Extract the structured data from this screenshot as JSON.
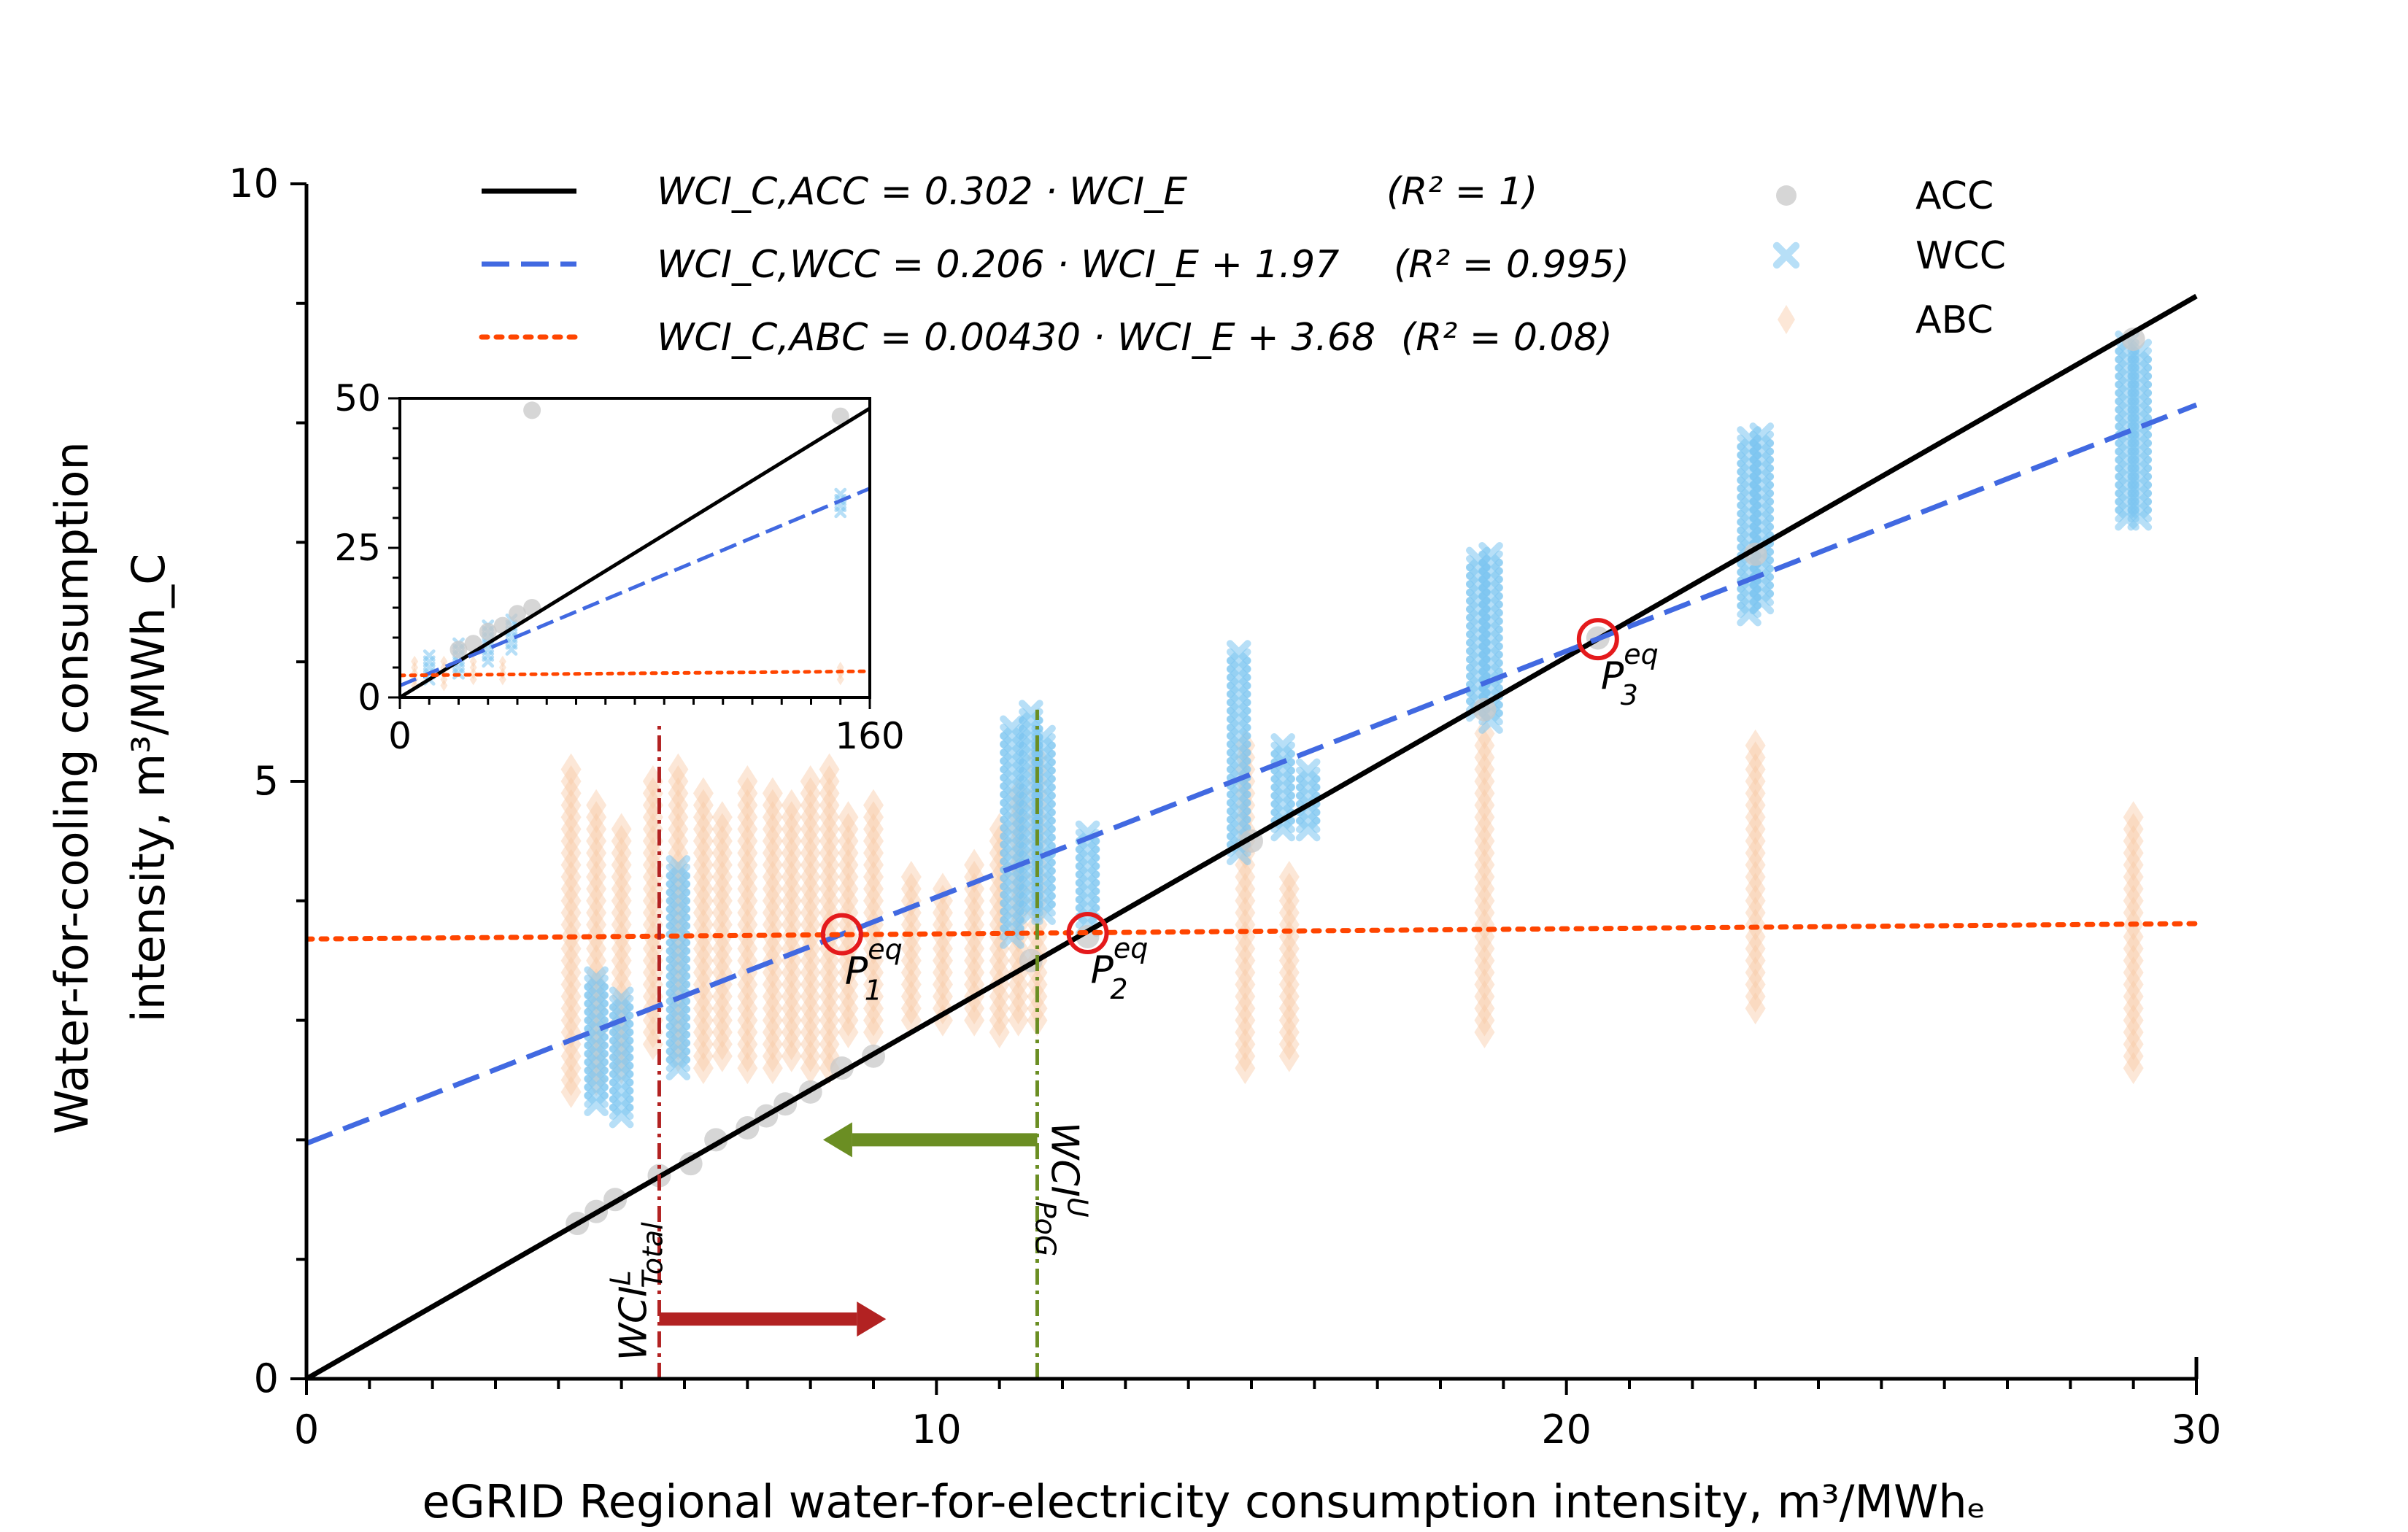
{
  "chart_data": {
    "type": "scatter",
    "xlabel": "eGRID Regional water-for-electricity consumption intensity, m³/MWhₑ",
    "ylabel_line1": "Water-for-cooling consumption",
    "ylabel_line2": "intensity, m³/MWh_C",
    "xlim": [
      0,
      30
    ],
    "ylim": [
      0,
      10
    ],
    "x_ticks": [
      0,
      10,
      20,
      30
    ],
    "y_ticks": [
      0,
      5,
      10
    ],
    "x_minor_step": 1,
    "series": [
      {
        "name": "ACC",
        "color": "#c8c8c8",
        "marker": "circle",
        "points": [
          [
            4.3,
            1.3
          ],
          [
            4.6,
            1.4
          ],
          [
            4.9,
            1.5
          ],
          [
            5.6,
            1.7
          ],
          [
            6.1,
            1.8
          ],
          [
            6.5,
            2.0
          ],
          [
            7.0,
            2.1
          ],
          [
            7.3,
            2.2
          ],
          [
            7.6,
            2.3
          ],
          [
            8.0,
            2.4
          ],
          [
            8.5,
            2.6
          ],
          [
            9.0,
            2.7
          ],
          [
            11.5,
            3.5
          ],
          [
            12.4,
            3.7
          ],
          [
            15.0,
            4.5
          ],
          [
            18.7,
            5.6
          ],
          [
            20.5,
            6.2
          ],
          [
            23.0,
            6.9
          ],
          [
            29.0,
            8.7
          ]
        ]
      },
      {
        "name": "WCC",
        "color": "#7cc4f0",
        "marker": "x",
        "points_range": [
          [
            4.6,
            2.3,
            3.4
          ],
          [
            5.0,
            2.2,
            3.2
          ],
          [
            5.9,
            2.6,
            4.3
          ],
          [
            11.2,
            3.7,
            5.5
          ],
          [
            11.5,
            3.9,
            5.6
          ],
          [
            11.7,
            3.9,
            5.4
          ],
          [
            12.4,
            3.8,
            4.6
          ],
          [
            14.8,
            4.4,
            6.1
          ],
          [
            15.5,
            4.6,
            5.3
          ],
          [
            15.9,
            4.6,
            5.1
          ],
          [
            18.6,
            5.6,
            6.9
          ],
          [
            18.8,
            5.5,
            6.9
          ],
          [
            22.9,
            6.4,
            7.9
          ],
          [
            23.1,
            6.5,
            7.9
          ],
          [
            28.9,
            7.2,
            8.7
          ],
          [
            29.1,
            7.2,
            8.6
          ]
        ]
      },
      {
        "name": "ABC",
        "color": "#f9c9a6",
        "marker": "diamond",
        "points_range": [
          [
            4.2,
            2.4,
            5.1
          ],
          [
            4.6,
            2.5,
            4.8
          ],
          [
            5.0,
            2.6,
            4.6
          ],
          [
            5.5,
            2.8,
            5.0
          ],
          [
            5.9,
            2.7,
            5.1
          ],
          [
            6.3,
            2.6,
            4.9
          ],
          [
            6.6,
            2.7,
            4.7
          ],
          [
            7.0,
            2.6,
            5.0
          ],
          [
            7.4,
            2.6,
            4.9
          ],
          [
            7.7,
            2.7,
            4.8
          ],
          [
            8.0,
            2.6,
            5.0
          ],
          [
            8.3,
            2.6,
            5.1
          ],
          [
            8.6,
            2.9,
            4.7
          ],
          [
            9.0,
            2.9,
            4.8
          ],
          [
            9.6,
            3.0,
            4.2
          ],
          [
            10.1,
            3.0,
            4.1
          ],
          [
            10.6,
            3.0,
            4.3
          ],
          [
            11.0,
            2.9,
            4.6
          ],
          [
            11.3,
            3.0,
            4.9
          ],
          [
            11.6,
            3.0,
            5.2
          ],
          [
            14.9,
            2.6,
            5.3
          ],
          [
            15.6,
            2.7,
            4.2
          ],
          [
            18.7,
            2.9,
            5.4
          ],
          [
            23.0,
            3.1,
            5.3
          ],
          [
            29.0,
            2.6,
            4.7
          ]
        ]
      }
    ],
    "fit_lines": [
      {
        "name": "ACC",
        "label": "WCI_C,ACC = 0.302 · WCI_E",
        "r2": "(R² = 1)",
        "slope": 0.302,
        "intercept": 0.0,
        "color": "#000000",
        "style": "solid"
      },
      {
        "name": "WCC",
        "label": "WCI_C,WCC = 0.206 · WCI_E + 1.97",
        "r2": "(R² = 0.995)",
        "slope": 0.206,
        "intercept": 1.97,
        "color": "#4169e1",
        "style": "dashed"
      },
      {
        "name": "ABC",
        "label": "WCI_C,ABC = 0.00430 · WCI_E + 3.68",
        "r2": "(R² = 0.08)",
        "slope": 0.0043,
        "intercept": 3.68,
        "color": "#ff4500",
        "style": "dotted"
      }
    ],
    "equilibrium_points": [
      {
        "label": "P₁ᵉᑫ",
        "base": "P",
        "sub": "1",
        "sup": "eq",
        "x": 8.5,
        "y": 3.72
      },
      {
        "label": "P₂ᵉᑫ",
        "base": "P",
        "sub": "2",
        "sup": "eq",
        "x": 12.4,
        "y": 3.73
      },
      {
        "label": "P₃ᵉᑫ",
        "base": "P",
        "sub": "3",
        "sup": "eq",
        "x": 20.5,
        "y": 6.19
      }
    ],
    "vertical_lines": [
      {
        "base": "WCI",
        "sup": "L",
        "sub": "Total",
        "x": 5.6,
        "color": "#b22222",
        "arrow_to": 9.2,
        "arrow_y": 0.5
      },
      {
        "base": "WCI",
        "sup": "U",
        "sub": "PoG",
        "x": 11.6,
        "color": "#6b8e23",
        "arrow_to": 8.2,
        "arrow_y": 2.0
      }
    ],
    "legend_position": "top",
    "inset": {
      "xlim": [
        0,
        160
      ],
      "ylim": [
        0,
        50
      ],
      "x_ticks": [
        0,
        160
      ],
      "y_ticks": [
        0,
        25,
        50
      ],
      "acc_points": [
        [
          20,
          8
        ],
        [
          25,
          9
        ],
        [
          30,
          11
        ],
        [
          35,
          12
        ],
        [
          40,
          14
        ],
        [
          45,
          15
        ],
        [
          150,
          47
        ],
        [
          45,
          48
        ]
      ],
      "wcc_points_range": [
        [
          10,
          3,
          7
        ],
        [
          20,
          4,
          9
        ],
        [
          30,
          6,
          12
        ],
        [
          38,
          8,
          13
        ],
        [
          150,
          31,
          34
        ]
      ],
      "abc_points_range": [
        [
          5,
          2,
          6
        ],
        [
          15,
          2,
          6
        ],
        [
          25,
          3,
          6
        ],
        [
          35,
          3,
          6
        ],
        [
          150,
          3,
          5
        ]
      ]
    }
  }
}
